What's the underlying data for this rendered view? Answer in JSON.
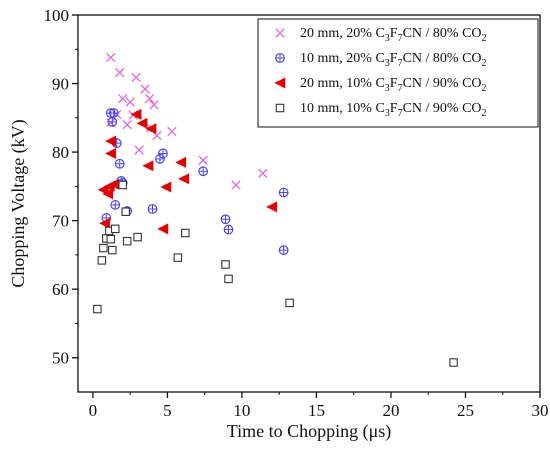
{
  "chart_data": {
    "type": "scatter",
    "title": "",
    "xlabel": "Time to Chopping (μs)",
    "ylabel": "Chopping Voltage (kV)",
    "xlim": [
      -1,
      30
    ],
    "ylim": [
      45,
      100
    ],
    "xticks": [
      0,
      5,
      10,
      15,
      20,
      25,
      30
    ],
    "yticks": [
      50,
      60,
      70,
      80,
      90,
      100
    ],
    "grid": false,
    "legend_position": "top-right",
    "series": [
      {
        "name": "20 mm, 20% C3F7CN / 80% CO2",
        "legend_parts": [
          "20 mm, 20% C",
          "3",
          "F",
          "7",
          "CN / 80% CO",
          "2"
        ],
        "marker": "x",
        "color": "#e066e0",
        "points": [
          [
            1.2,
            93.8
          ],
          [
            1.2,
            84.3
          ],
          [
            1.6,
            85.5
          ],
          [
            1.8,
            91.6
          ],
          [
            2.0,
            87.8
          ],
          [
            2.3,
            84.0
          ],
          [
            2.5,
            87.3
          ],
          [
            2.7,
            85.4
          ],
          [
            2.9,
            90.9
          ],
          [
            3.1,
            80.3
          ],
          [
            3.5,
            89.2
          ],
          [
            3.8,
            87.8
          ],
          [
            3.9,
            83.5
          ],
          [
            4.1,
            86.9
          ],
          [
            4.3,
            82.4
          ],
          [
            5.3,
            83.0
          ],
          [
            7.4,
            78.8
          ],
          [
            9.6,
            75.2
          ],
          [
            11.4,
            76.9
          ]
        ]
      },
      {
        "name": "10 mm, 20% C3F7CN / 80% CO2",
        "legend_parts": [
          "10 mm, 20% C",
          "3",
          "F",
          "7",
          "CN / 80% CO",
          "2"
        ],
        "marker": "circle-plus",
        "color": "#4a4ae6",
        "points": [
          [
            0.9,
            70.4
          ],
          [
            1.2,
            85.7
          ],
          [
            1.3,
            84.4
          ],
          [
            1.4,
            85.7
          ],
          [
            1.5,
            72.3
          ],
          [
            1.6,
            81.3
          ],
          [
            1.8,
            78.3
          ],
          [
            1.9,
            75.8
          ],
          [
            2.0,
            75.5
          ],
          [
            2.3,
            71.4
          ],
          [
            4.0,
            71.7
          ],
          [
            4.5,
            79.0
          ],
          [
            4.7,
            79.8
          ],
          [
            7.4,
            77.2
          ],
          [
            8.9,
            70.2
          ],
          [
            9.1,
            68.7
          ],
          [
            12.8,
            74.1
          ],
          [
            12.8,
            65.7
          ]
        ]
      },
      {
        "name": "20 mm, 10% C3F7CN / 90% CO2",
        "legend_parts": [
          "20 mm, 10% C",
          "3",
          "F",
          "7",
          "CN / 90% CO",
          "2"
        ],
        "marker": "triangle-left",
        "color": "#e00000",
        "points": [
          [
            0.7,
            74.5
          ],
          [
            0.8,
            69.6
          ],
          [
            1.0,
            73.9
          ],
          [
            1.1,
            75.0
          ],
          [
            1.2,
            81.6
          ],
          [
            1.2,
            79.8
          ],
          [
            1.4,
            75.3
          ],
          [
            2.9,
            85.5
          ],
          [
            3.3,
            84.2
          ],
          [
            3.7,
            78.0
          ],
          [
            3.9,
            83.4
          ],
          [
            4.7,
            68.8
          ],
          [
            4.9,
            74.9
          ],
          [
            5.9,
            78.5
          ],
          [
            6.1,
            76.1
          ],
          [
            12.0,
            72.0
          ]
        ]
      },
      {
        "name": "10 mm, 10% C3F7CN / 90% CO2",
        "legend_parts": [
          "10 mm, 10% C",
          "3",
          "F",
          "7",
          "CN / 90% CO",
          "2"
        ],
        "marker": "square",
        "color": "#333333",
        "points": [
          [
            0.3,
            57.1
          ],
          [
            0.6,
            64.2
          ],
          [
            0.7,
            66.0
          ],
          [
            0.9,
            67.4
          ],
          [
            1.1,
            68.5
          ],
          [
            1.2,
            67.3
          ],
          [
            1.3,
            65.7
          ],
          [
            1.5,
            68.8
          ],
          [
            2.0,
            75.2
          ],
          [
            2.2,
            71.3
          ],
          [
            2.3,
            67.0
          ],
          [
            3.0,
            67.6
          ],
          [
            5.7,
            64.6
          ],
          [
            6.2,
            68.2
          ],
          [
            8.9,
            63.6
          ],
          [
            9.1,
            61.5
          ],
          [
            13.2,
            58.0
          ],
          [
            24.2,
            49.3
          ]
        ]
      }
    ]
  }
}
